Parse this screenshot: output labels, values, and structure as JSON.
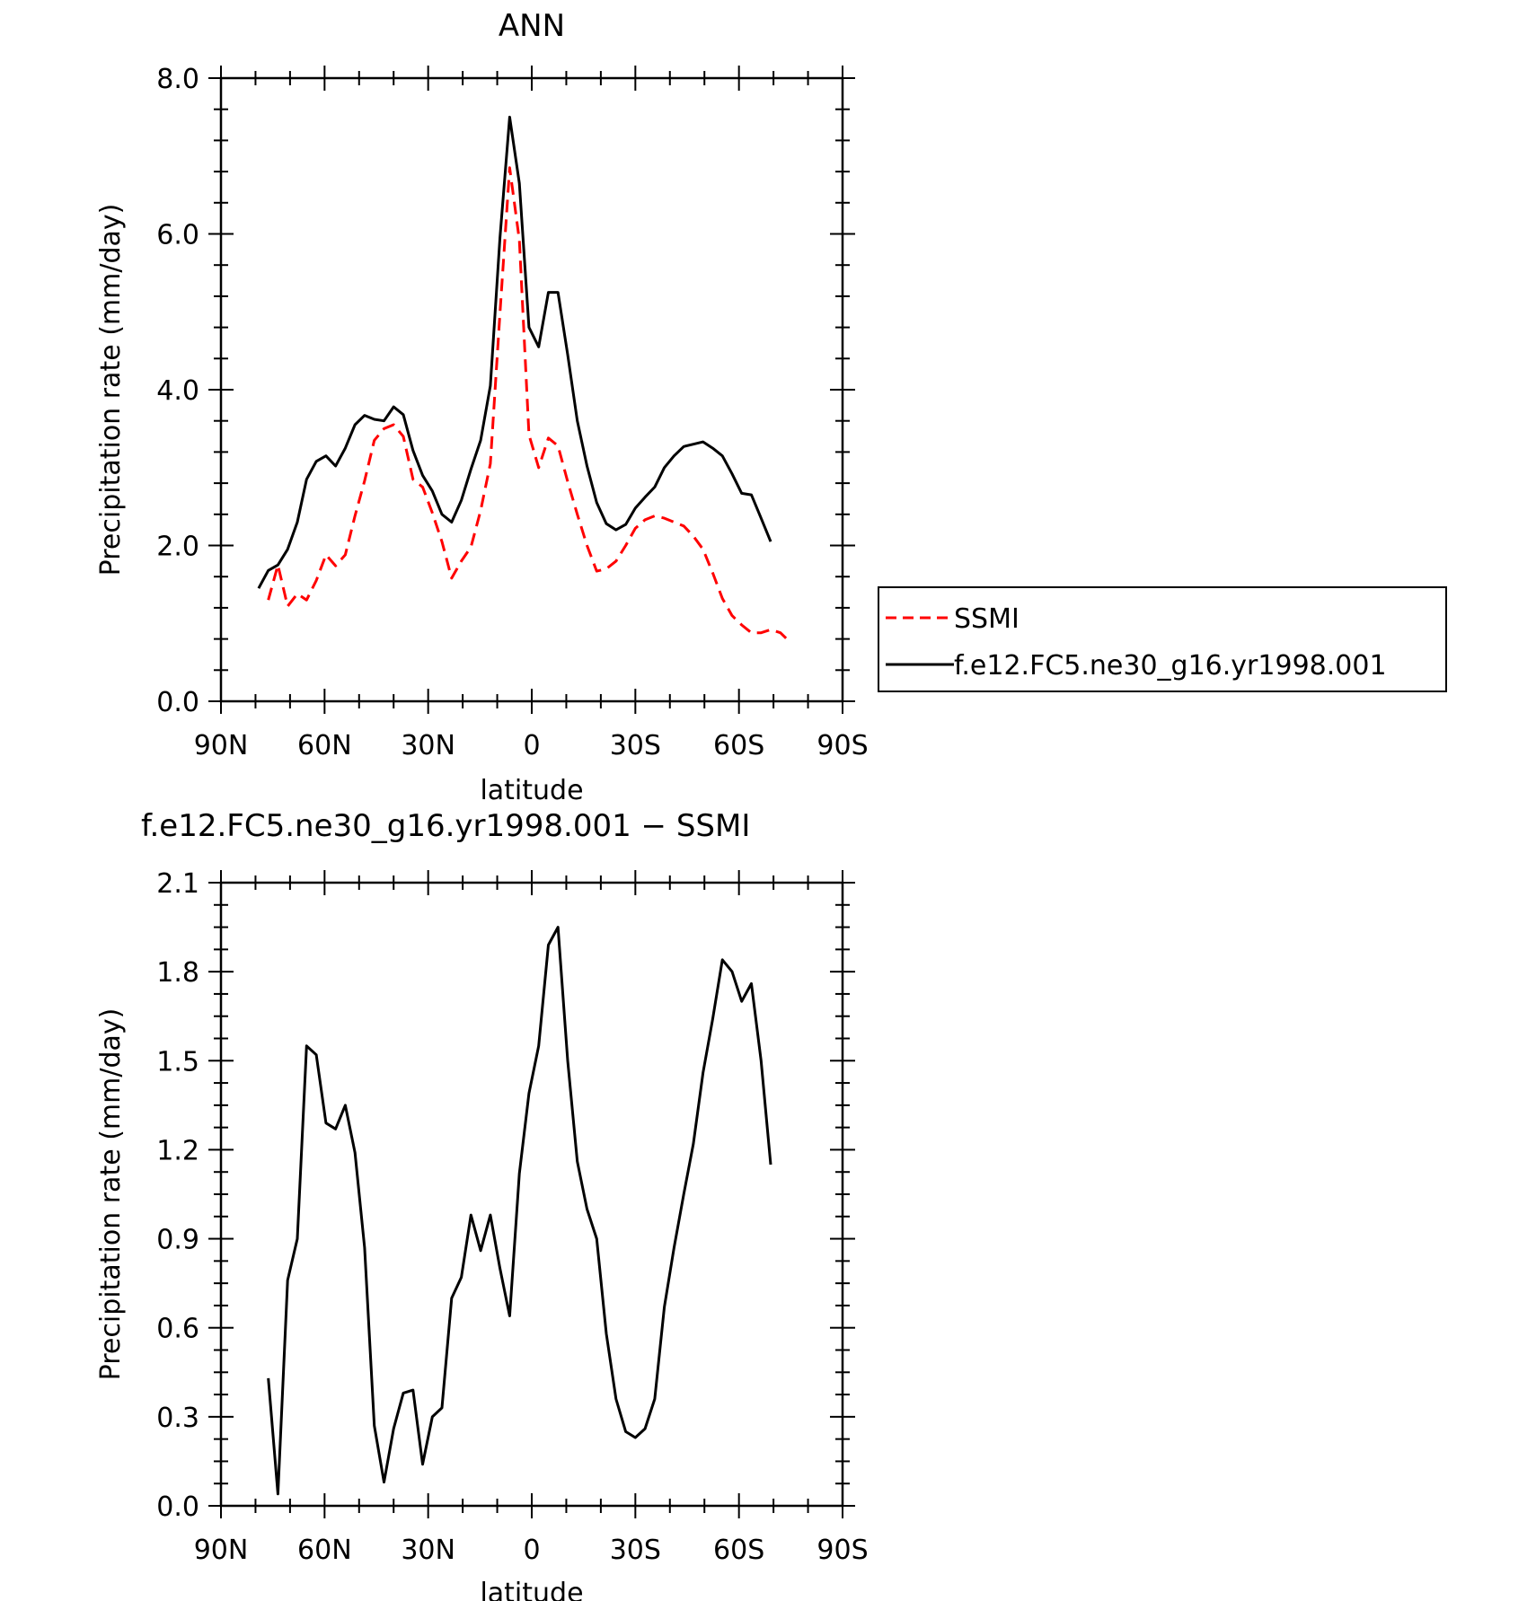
{
  "chart_data": [
    {
      "type": "line",
      "title": "ANN",
      "xlabel": "latitude",
      "ylabel": "Precipitation rate (mm/day)",
      "xlim": [
        90,
        -90
      ],
      "ylim": [
        0,
        8
      ],
      "x_ticks": [
        90,
        60,
        30,
        0,
        -30,
        -60,
        -90
      ],
      "x_tick_labels": [
        "90N",
        "60N",
        "30N",
        "0",
        "30S",
        "60S",
        "90S"
      ],
      "y_ticks": [
        0,
        2,
        4,
        6,
        8
      ],
      "y_tick_labels": [
        "0.0",
        "2.0",
        "4.0",
        "6.0",
        "8.0"
      ],
      "legend_position": "right",
      "series": [
        {
          "name": "SSMI",
          "color": "#ff0000",
          "dash": "dashed",
          "x": [
            76.3,
            73.5,
            70.7,
            67.9,
            65.2,
            62.4,
            59.6,
            56.8,
            54.0,
            51.2,
            48.4,
            45.6,
            42.8,
            40.0,
            37.2,
            34.4,
            31.6,
            28.8,
            26.0,
            23.2,
            20.4,
            17.6,
            14.8,
            12.0,
            9.2,
            6.4,
            3.6,
            0.8,
            -2.0,
            -4.8,
            -7.6,
            -10.4,
            -13.2,
            -16.0,
            -18.8,
            -21.6,
            -24.4,
            -27.2,
            -30.0,
            -32.8,
            -35.6,
            -38.4,
            -41.2,
            -44.0,
            -46.8,
            -49.6,
            -52.4,
            -55.2,
            -58.0,
            -60.8,
            -63.6,
            -66.4,
            -69.2,
            -72.0,
            -74.8
          ],
          "y": [
            1.3,
            1.75,
            1.22,
            1.38,
            1.3,
            1.55,
            1.88,
            1.74,
            1.88,
            2.38,
            2.83,
            3.35,
            3.5,
            3.55,
            3.4,
            2.85,
            2.75,
            2.42,
            2.05,
            1.58,
            1.8,
            1.98,
            2.45,
            3.05,
            4.98,
            6.85,
            5.92,
            3.42,
            3.0,
            3.38,
            3.28,
            2.82,
            2.4,
            2.0,
            1.67,
            1.7,
            1.8,
            2.0,
            2.22,
            2.33,
            2.38,
            2.35,
            2.3,
            2.25,
            2.12,
            1.95,
            1.65,
            1.32,
            1.1,
            0.98,
            0.88,
            0.88,
            0.92,
            0.88,
            0.76
          ]
        },
        {
          "name": "f.e12.FC5.ne30_g16.yr1998.001",
          "color": "#000000",
          "dash": "solid",
          "x": [
            79.1,
            76.3,
            73.5,
            70.7,
            67.9,
            65.2,
            62.4,
            59.6,
            56.8,
            54.0,
            51.2,
            48.4,
            45.6,
            42.8,
            40.0,
            37.2,
            34.4,
            31.6,
            28.8,
            26.0,
            23.2,
            20.4,
            17.6,
            14.8,
            12.0,
            9.2,
            6.4,
            3.6,
            0.8,
            -2.0,
            -4.8,
            -7.6,
            -10.4,
            -13.2,
            -16.0,
            -18.8,
            -21.6,
            -24.4,
            -27.2,
            -30.0,
            -32.8,
            -35.6,
            -38.4,
            -41.2,
            -44.0,
            -46.8,
            -49.6,
            -52.4,
            -55.2,
            -58.0,
            -60.8,
            -63.6,
            -66.4,
            -69.2
          ],
          "y": [
            1.45,
            1.68,
            1.75,
            1.95,
            2.3,
            2.85,
            3.08,
            3.15,
            3.02,
            3.25,
            3.55,
            3.67,
            3.62,
            3.6,
            3.78,
            3.68,
            3.22,
            2.9,
            2.7,
            2.4,
            2.3,
            2.58,
            2.98,
            3.35,
            4.05,
            5.95,
            7.5,
            6.65,
            4.8,
            4.55,
            5.25,
            5.25,
            4.45,
            3.6,
            3.02,
            2.55,
            2.28,
            2.2,
            2.27,
            2.48,
            2.62,
            2.75,
            3.0,
            3.15,
            3.27,
            3.3,
            3.33,
            3.25,
            3.15,
            2.92,
            2.67,
            2.65,
            2.35,
            2.05
          ]
        }
      ]
    },
    {
      "type": "line",
      "title": "f.e12.FC5.ne30_g16.yr1998.001 − SSMI",
      "xlabel": "latitude",
      "ylabel": "Precipitation rate (mm/day)",
      "xlim": [
        90,
        -90
      ],
      "ylim": [
        0,
        2.1
      ],
      "x_ticks": [
        90,
        60,
        30,
        0,
        -30,
        -60,
        -90
      ],
      "x_tick_labels": [
        "90N",
        "60N",
        "30N",
        "0",
        "30S",
        "60S",
        "90S"
      ],
      "y_ticks": [
        0,
        0.3,
        0.6,
        0.9,
        1.2,
        1.5,
        1.8,
        2.1
      ],
      "y_tick_labels": [
        "0.0",
        "0.3",
        "0.6",
        "0.9",
        "1.2",
        "1.5",
        "1.8",
        "2.1"
      ],
      "series": [
        {
          "color": "#000000",
          "dash": "solid",
          "x": [
            76.3,
            73.5,
            70.7,
            67.9,
            65.2,
            62.4,
            59.6,
            56.8,
            54.0,
            51.2,
            48.4,
            45.6,
            42.8,
            40.0,
            37.2,
            34.4,
            31.6,
            28.8,
            26.0,
            23.2,
            20.4,
            17.6,
            14.8,
            12.0,
            9.2,
            6.4,
            3.6,
            0.8,
            -2.0,
            -4.8,
            -7.6,
            -10.4,
            -13.2,
            -16.0,
            -18.8,
            -21.6,
            -24.4,
            -27.2,
            -30.0,
            -32.8,
            -35.6,
            -38.4,
            -41.2,
            -44.0,
            -46.8,
            -49.6,
            -52.4,
            -55.2,
            -58.0,
            -60.8,
            -63.6,
            -66.4,
            -69.2
          ],
          "y": [
            0.43,
            0.04,
            0.76,
            0.9,
            1.55,
            1.52,
            1.29,
            1.27,
            1.35,
            1.19,
            0.87,
            0.27,
            0.08,
            0.26,
            0.38,
            0.39,
            0.14,
            0.3,
            0.33,
            0.7,
            0.77,
            0.98,
            0.86,
            0.98,
            0.8,
            0.64,
            1.12,
            1.39,
            1.55,
            1.89,
            1.95,
            1.5,
            1.16,
            1.0,
            0.9,
            0.58,
            0.36,
            0.25,
            0.23,
            0.26,
            0.36,
            0.67,
            0.87,
            1.05,
            1.22,
            1.46,
            1.64,
            1.84,
            1.8,
            1.7,
            1.76,
            1.5,
            1.15
          ]
        }
      ]
    }
  ]
}
